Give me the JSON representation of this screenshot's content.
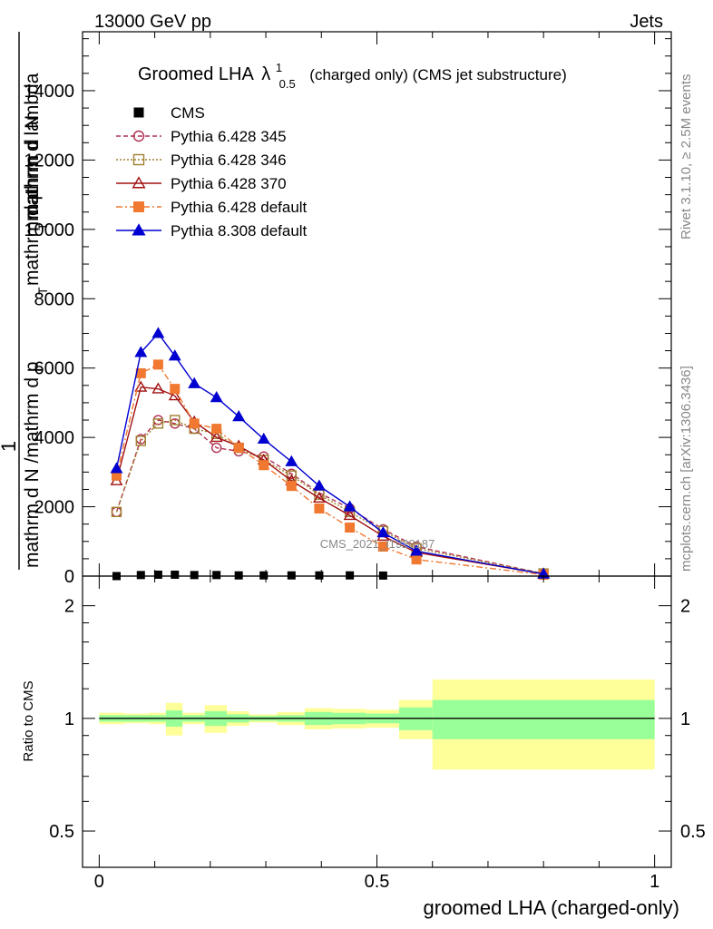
{
  "header": {
    "left": "13000 GeV pp",
    "right": "Jets"
  },
  "side_text": {
    "top": "Rivet 3.1.10, ≥ 2.5M events",
    "bottom": "mcplots.cern.ch [arXiv:1306.3436]"
  },
  "chart_data": [
    {
      "type": "line",
      "title_main": "Groomed LHA",
      "title_symbol": "λ",
      "title_sup": "1",
      "title_sub": "0.5",
      "title_rest": "(charged only) (CMS jet substructure)",
      "ylabel_parts": [
        "1",
        "mathrm d N /mathrm d p",
        "T",
        "mathrm d p",
        "T",
        "mathrm d lambda",
        "mathrm d",
        "N"
      ],
      "watermark": "CMS_2021_I1920187",
      "xlim": [
        -0.03,
        1.03
      ],
      "ylim": [
        0,
        15700
      ],
      "yticks": [
        0,
        2000,
        4000,
        6000,
        8000,
        10000,
        12000,
        14000
      ],
      "ytick_labels": [
        "0",
        "2000",
        "4000",
        "6000",
        "8000",
        "10000",
        "12000",
        "14000"
      ],
      "x": [
        0.0312,
        0.075,
        0.1062,
        0.1362,
        0.1712,
        0.2112,
        0.2512,
        0.2962,
        0.3462,
        0.3962,
        0.4512,
        0.5112,
        0.5712,
        0.8
      ],
      "series": [
        {
          "name": "CMS",
          "color": "#000000",
          "marker": "square",
          "line": "none",
          "values": [
            0,
            30,
            40,
            40,
            30,
            30,
            20,
            20,
            20,
            20,
            20,
            15,
            0,
            0
          ]
        },
        {
          "name": "Pythia 6.428 345",
          "color": "#b03050",
          "marker": "open-circle",
          "line": "dashed",
          "values": [
            1850,
            3950,
            4500,
            4400,
            4250,
            3700,
            3600,
            3450,
            2950,
            2400,
            1950,
            1350,
            850,
            70
          ]
        },
        {
          "name": "Pythia 6.428 346",
          "color": "#a08030",
          "marker": "open-square",
          "line": "dotted",
          "values": [
            1850,
            3900,
            4400,
            4500,
            4250,
            4100,
            3700,
            3350,
            2900,
            2350,
            1850,
            1300,
            800,
            75
          ]
        },
        {
          "name": "Pythia 6.428 370",
          "color": "#a01010",
          "marker": "open-triangle",
          "line": "solid",
          "values": [
            2750,
            5450,
            5400,
            5200,
            4450,
            4000,
            3750,
            3350,
            2750,
            2250,
            1750,
            1150,
            680,
            65
          ]
        },
        {
          "name": "Pythia 6.428 default",
          "color": "#f07830",
          "marker": "filled-square",
          "line": "dashdot",
          "values": [
            2900,
            5850,
            6100,
            5400,
            4400,
            4250,
            3700,
            3200,
            2600,
            1950,
            1400,
            850,
            480,
            40
          ]
        },
        {
          "name": "Pythia 8.308 default",
          "color": "#0000d0",
          "marker": "filled-triangle",
          "line": "solid",
          "values": [
            3100,
            6450,
            7000,
            6350,
            5550,
            5150,
            4600,
            3950,
            3300,
            2600,
            2000,
            1250,
            720,
            60
          ]
        }
      ]
    },
    {
      "type": "area",
      "ylabel": "Ratio to CMS",
      "xlabel": "groomed LHA (charged-only)",
      "scale": "log",
      "ylim": [
        0.4,
        2.4
      ],
      "yticks": [
        0.5,
        1,
        2
      ],
      "ytick_labels": [
        "0.5",
        "1",
        "2"
      ],
      "xticks": [
        0,
        0.5,
        1
      ],
      "xtick_labels": [
        "0",
        "0.5",
        "1"
      ],
      "xlim": [
        -0.03,
        1.03
      ],
      "bins": [
        0,
        0.045,
        0.09,
        0.12,
        0.15,
        0.19,
        0.23,
        0.27,
        0.32,
        0.37,
        0.42,
        0.48,
        0.54,
        0.6,
        1.0
      ],
      "inner_band": [
        0.02,
        0.02,
        0.02,
        0.05,
        0.02,
        0.045,
        0.025,
        0.015,
        0.02,
        0.04,
        0.035,
        0.03,
        0.07,
        0.12
      ],
      "outer_band": [
        0.035,
        0.03,
        0.035,
        0.1,
        0.035,
        0.085,
        0.045,
        0.025,
        0.04,
        0.065,
        0.06,
        0.055,
        0.12,
        0.27
      ],
      "band_colors": {
        "inner": "#99ff99",
        "outer": "#ffff99"
      }
    }
  ]
}
